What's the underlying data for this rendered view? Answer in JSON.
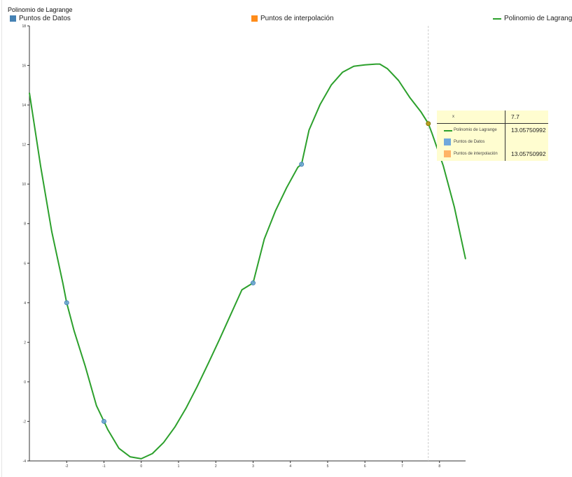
{
  "colors": {
    "datos": "#4682b4",
    "interpolacion": "#ff8c1a",
    "polinomio": "#2ca02c",
    "tooltip_datos": "#6fa8dc",
    "tooltip_interp": "#ffb366",
    "crosshair": "#cccccc"
  },
  "legend": {
    "datos_label": "Puntos de Datos",
    "interpolacion_label": "Puntos de interpolación",
    "polinomio_label": "Polinomio de Lagrange"
  },
  "tooltip": {
    "x_label": "x",
    "x_value": "7.7",
    "rows": [
      {
        "label": "Polinomio de Lagrange",
        "value": "13.05750992"
      },
      {
        "label": "Puntos de Datos",
        "value": ""
      },
      {
        "label": "Puntos de interpolación",
        "value": "13.05750992"
      }
    ]
  },
  "chart_data": {
    "type": "line",
    "title": "Polinomio de Lagrange",
    "xlabel": "",
    "ylabel": "",
    "xlim": [
      -3,
      8.7
    ],
    "ylim": [
      -4,
      18
    ],
    "x_ticks": [
      -2,
      -1,
      0,
      1,
      2,
      3,
      4,
      5,
      6,
      7,
      8
    ],
    "y_ticks": [
      -4,
      -2,
      0,
      2,
      4,
      6,
      8,
      10,
      12,
      14,
      16,
      18
    ],
    "series": [
      {
        "name": "Polinomio de Lagrange",
        "kind": "line",
        "x": [
          -3,
          -2.7,
          -2.4,
          -2.1,
          -2,
          -1.8,
          -1.5,
          -1.2,
          -1,
          -0.9,
          -0.6,
          -0.3,
          0,
          0.3,
          0.6,
          0.9,
          1.2,
          1.5,
          1.8,
          2.1,
          2.4,
          2.7,
          3,
          3.3,
          3.6,
          3.9,
          4.2,
          4.3,
          4.5,
          4.8,
          5.1,
          5.4,
          5.7,
          6,
          6.3,
          6.4,
          6.6,
          6.9,
          7.2,
          7.5,
          7.7,
          7.8,
          8.1,
          8.4,
          8.7
        ],
        "y": [
          14.62,
          10.91,
          7.6,
          4.97,
          4.0,
          2.57,
          0.77,
          -1.21,
          -2.0,
          -2.41,
          -3.36,
          -3.79,
          -3.89,
          -3.63,
          -3.07,
          -2.29,
          -1.34,
          -0.24,
          0.94,
          2.15,
          3.4,
          4.65,
          5.0,
          7.22,
          8.64,
          9.82,
          10.85,
          11.0,
          12.73,
          14.03,
          15.02,
          15.66,
          15.96,
          16.03,
          16.07,
          16.07,
          15.84,
          15.24,
          14.39,
          13.66,
          13.06,
          12.56,
          10.93,
          8.83,
          6.2
        ]
      },
      {
        "name": "Puntos de Datos",
        "kind": "scatter",
        "x": [
          -2,
          -1,
          3,
          4.3
        ],
        "y": [
          4,
          -2,
          5,
          11
        ]
      },
      {
        "name": "Puntos de interpolación",
        "kind": "scatter",
        "x": [
          7.7
        ],
        "y": [
          13.0575
        ]
      }
    ],
    "hover_x": 7.7
  }
}
